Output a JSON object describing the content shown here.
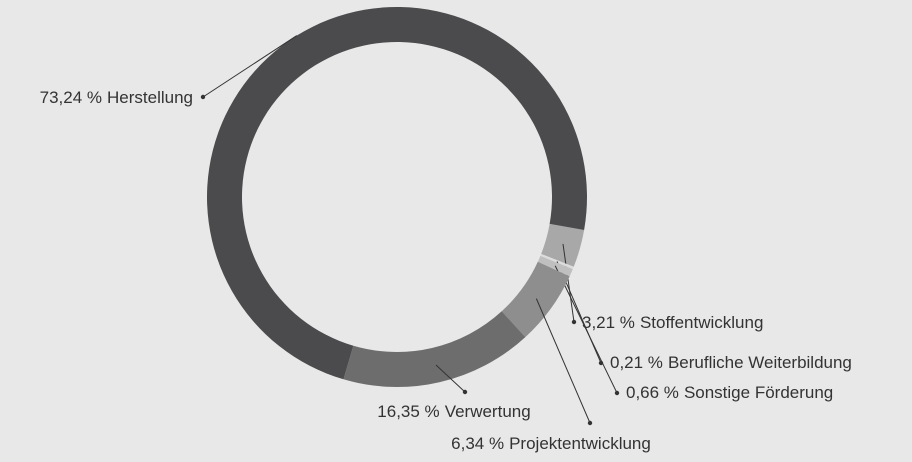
{
  "chart_data": {
    "type": "donut",
    "categories": [
      "Stoffentwicklung",
      "Berufliche Weiterbildung",
      "Sonstige Förderung",
      "Projektentwicklung",
      "Verwertung",
      "Herstellung"
    ],
    "values": [
      3.21,
      0.21,
      0.66,
      6.34,
      16.35,
      73.24
    ],
    "value_labels": [
      "3,21 %",
      "0,21 %",
      "0,66 %",
      "6,34 %",
      "16,35 %",
      "73,24 %"
    ],
    "colors": [
      "#a8a8a8",
      "#dcdcdc",
      "#bfbfbf",
      "#8e8e8e",
      "#6d6d6d",
      "#4b4b4d"
    ]
  }
}
